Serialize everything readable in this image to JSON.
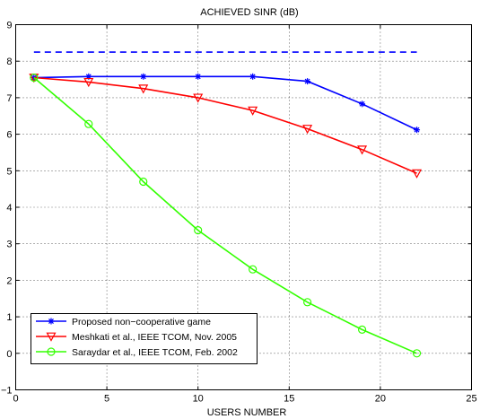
{
  "chart_data": {
    "type": "line",
    "title": "ACHIEVED SINR (dB)",
    "xlabel": "USERS NUMBER",
    "ylabel": "",
    "xlim": [
      0,
      25
    ],
    "ylim": [
      -1,
      9
    ],
    "xticks": [
      0,
      5,
      10,
      15,
      20,
      25
    ],
    "yticks": [
      -1,
      0,
      1,
      2,
      3,
      4,
      5,
      6,
      7,
      8,
      9
    ],
    "grid": true,
    "legend_position": "bottom-left",
    "reference_line": {
      "x": [
        1,
        22
      ],
      "y": 8.25,
      "style": "dashed",
      "color": "#0000ff"
    },
    "series": [
      {
        "name": "Proposed non−cooperative game",
        "color": "#0000ff",
        "marker": "asterisk",
        "x": [
          1,
          4,
          7,
          10,
          13,
          16,
          19,
          22
        ],
        "y": [
          7.55,
          7.58,
          7.58,
          7.58,
          7.58,
          7.45,
          6.83,
          6.12
        ]
      },
      {
        "name": "Meshkati et al., IEEE TCOM, Nov. 2005",
        "color": "#ff0000",
        "marker": "triangle-down",
        "x": [
          1,
          4,
          7,
          10,
          13,
          16,
          19,
          22
        ],
        "y": [
          7.55,
          7.43,
          7.25,
          7.0,
          6.65,
          6.15,
          5.58,
          4.93
        ]
      },
      {
        "name": "Saraydar et al., IEEE TCOM, Feb. 2002",
        "color": "#33ff00",
        "marker": "circle",
        "x": [
          1,
          4,
          7,
          10,
          13,
          16,
          19,
          22
        ],
        "y": [
          7.55,
          6.28,
          4.7,
          3.37,
          2.3,
          1.4,
          0.65,
          0.0
        ]
      }
    ]
  }
}
